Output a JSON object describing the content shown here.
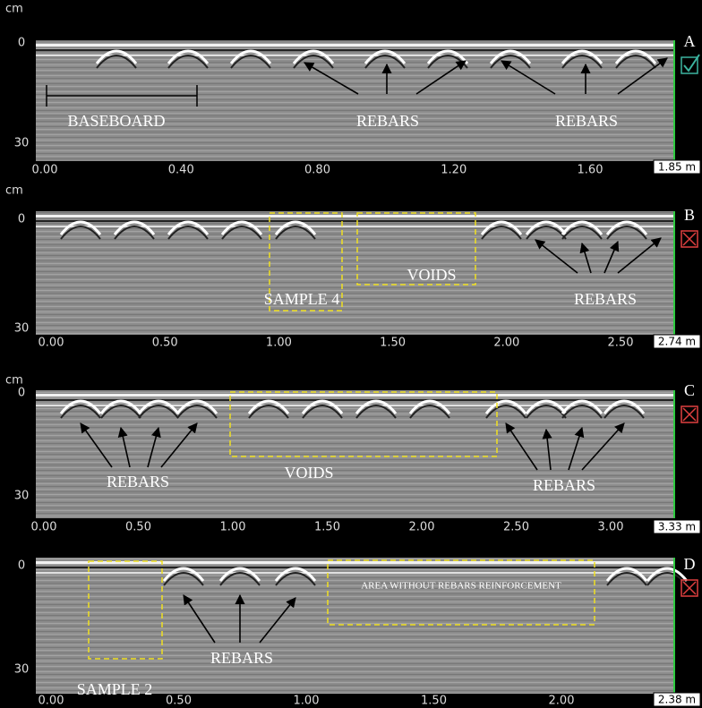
{
  "panels": [
    {
      "letter": "A",
      "unit": "cm",
      "y_labels": [
        "0",
        "30"
      ],
      "x_labels": [
        "0.00",
        "0.40",
        "0.80",
        "1.20",
        "1.60"
      ],
      "length": "1.85 m",
      "annotations": [
        "BASEBOARD",
        "REBARS",
        "REBARS"
      ]
    },
    {
      "letter": "B",
      "unit": "cm",
      "y_labels": [
        "0",
        "30"
      ],
      "x_labels": [
        "0.00",
        "0.50",
        "1.00",
        "1.50",
        "2.00",
        "2.50"
      ],
      "length": "2.74 m",
      "annotations": [
        "SAMPLE 4",
        "VOIDS",
        "REBARS"
      ]
    },
    {
      "letter": "C",
      "unit": "cm",
      "y_labels": [
        "0",
        "30"
      ],
      "x_labels": [
        "0.00",
        "0.50",
        "1.00",
        "1.50",
        "2.00",
        "2.50",
        "3.00"
      ],
      "length": "3.33 m",
      "annotations": [
        "REBARS",
        "VOIDS",
        "REBARS"
      ]
    },
    {
      "letter": "D",
      "unit": "",
      "y_labels": [
        "0",
        "30"
      ],
      "x_labels": [
        "0.00",
        "0.50",
        "1.00",
        "1.50",
        "2.00"
      ],
      "length": "2.38 m",
      "annotations": [
        "SAMPLE 2",
        "REBARS",
        "AREA WITHOUT REBARS REINFORCEMENT"
      ]
    }
  ]
}
